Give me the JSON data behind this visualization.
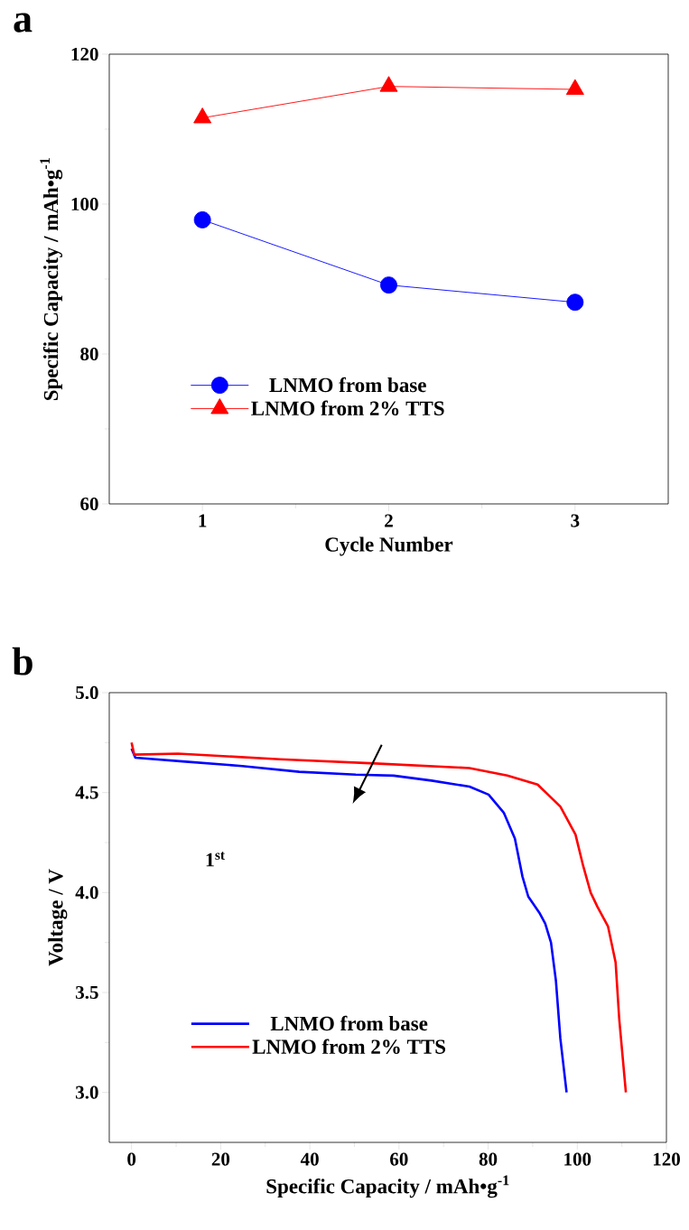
{
  "chart_data": [
    {
      "type": "line",
      "title": "a",
      "xlabel": "Cycle Number",
      "ylabel": "Specific Capacity / mAh•g$^{-1}$",
      "xlim": [
        0.5,
        3.5
      ],
      "ylim": [
        60,
        120
      ],
      "xticks": [
        1,
        2,
        3
      ],
      "yticks": [
        60,
        80,
        100,
        120
      ],
      "legend": "bottom left",
      "x": [
        1,
        2,
        3
      ],
      "series": [
        {
          "name": "LNMO from base",
          "color": "#0000ff",
          "marker": "circle",
          "values": [
            97.9,
            89.2,
            86.9
          ]
        },
        {
          "name": "LNMO from 2% TTS",
          "color": "#ff0000",
          "marker": "triangle",
          "values": [
            111.5,
            115.7,
            115.3
          ]
        }
      ]
    },
    {
      "type": "line",
      "title": "b",
      "xlabel": "Specific Capacity / mAh•g$^{-1}$",
      "ylabel": "Voltage / V",
      "xlim": [
        -5,
        120
      ],
      "ylim": [
        2.75,
        5.0
      ],
      "xticks": [
        0,
        20,
        40,
        60,
        80,
        100,
        120
      ],
      "yticks": [
        {
          "value": 3.0,
          "label": "3.0"
        },
        {
          "value": 3.5,
          "label": "3.5"
        },
        {
          "value": 4.0,
          "label": "4.0"
        },
        {
          "value": 4.5,
          "label": "4.5"
        },
        {
          "value": 5.0,
          "label": "5.0"
        }
      ],
      "legend": "bottom left",
      "annotations": [
        "1$^{st}$"
      ],
      "series": [
        {
          "name": "LNMO from base",
          "color": "#0000ff",
          "x": [
            0,
            0.85,
            12.1,
            24.8,
            37.6,
            50.3,
            58.8,
            67.3,
            75.8,
            80.1,
            83.5,
            86.0,
            87.7,
            89.0,
            91.6,
            92.8,
            94.1,
            95.2,
            96.2,
            97.6
          ],
          "values": [
            4.72,
            4.675,
            4.655,
            4.633,
            4.604,
            4.59,
            4.585,
            4.56,
            4.53,
            4.49,
            4.4,
            4.27,
            4.08,
            3.98,
            3.895,
            3.845,
            3.75,
            3.56,
            3.27,
            3.0
          ]
        },
        {
          "name": "LNMO from 2% TTS",
          "color": "#ff0000",
          "x": [
            0,
            0.6,
            10.4,
            33.3,
            54.6,
            75.8,
            84.3,
            91.1,
            96.2,
            99.6,
            101.3,
            103.0,
            104.5,
            106.9,
            108.6,
            109.4,
            110.9
          ],
          "values": [
            4.75,
            4.69,
            4.695,
            4.667,
            4.646,
            4.623,
            4.585,
            4.54,
            4.43,
            4.29,
            4.135,
            4.0,
            3.93,
            3.83,
            3.65,
            3.37,
            3.0
          ]
        }
      ]
    }
  ]
}
